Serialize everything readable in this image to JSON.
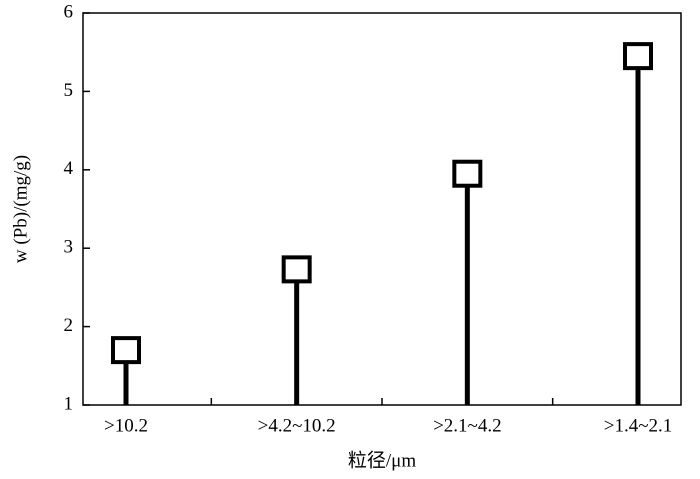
{
  "chart_data": {
    "type": "stem",
    "categories": [
      ">10.2",
      ">4.2~10.2",
      ">2.1~4.2",
      ">1.4~2.1"
    ],
    "values": [
      1.7,
      2.73,
      3.95,
      5.45
    ],
    "color": "#000000",
    "ylim": [
      1,
      6
    ],
    "yticks": [
      1,
      2,
      3,
      4,
      5,
      6
    ],
    "x_label": "粒径/μm",
    "y_label": "w (Pb)/(mg/g)"
  }
}
